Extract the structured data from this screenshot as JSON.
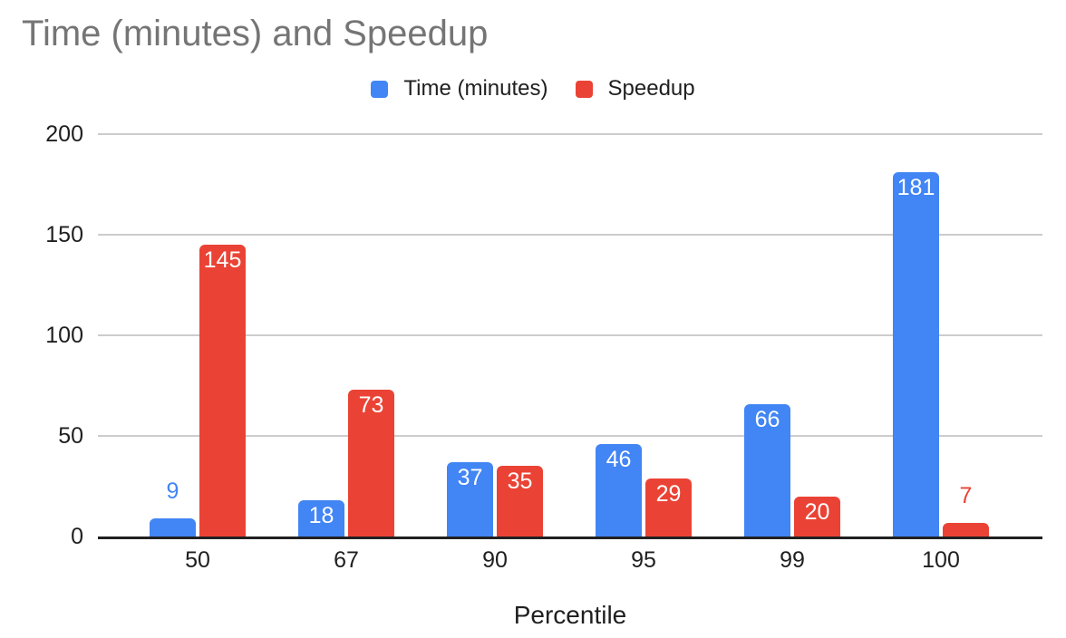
{
  "title": "Time (minutes) and Speedup",
  "legend": [
    {
      "label": "Time (minutes)",
      "color": "#4285F4"
    },
    {
      "label": "Speedup",
      "color": "#EA4335"
    }
  ],
  "colors": {
    "series_blue": "#4285F4",
    "series_red": "#EA4335",
    "title_text": "#757575",
    "axis_text": "#1f1f1f",
    "gridline": "#cccccc",
    "axis_line": "#212121",
    "background": "#ffffff"
  },
  "chart_data": {
    "type": "bar",
    "title": "Time (minutes) and Speedup",
    "xlabel": "Percentile",
    "ylabel": "",
    "categories": [
      "50",
      "67",
      "90",
      "95",
      "99",
      "100"
    ],
    "series": [
      {
        "name": "Time (minutes)",
        "color": "#4285F4",
        "values": [
          9,
          18,
          37,
          46,
          66,
          181
        ]
      },
      {
        "name": "Speedup",
        "color": "#EA4335",
        "values": [
          145,
          73,
          35,
          29,
          20,
          7
        ]
      }
    ],
    "ylim": [
      0,
      200
    ],
    "yticks": [
      0,
      50,
      100,
      150,
      200
    ],
    "grid": true,
    "legend_position": "top",
    "value_labels": "shown, white inside bar when bar is tall enough, series-colored above bar otherwise"
  }
}
